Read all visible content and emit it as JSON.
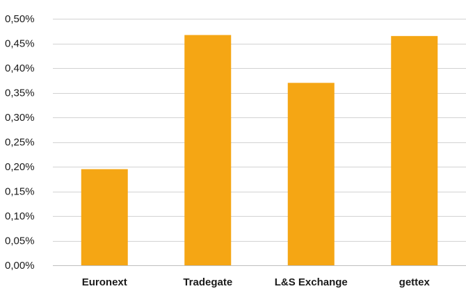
{
  "chart_data": {
    "type": "bar",
    "title": "",
    "xlabel": "",
    "ylabel": "",
    "categories": [
      "Euronext",
      "Tradegate",
      "L&S Exchange",
      "gettex"
    ],
    "values": [
      0.195,
      0.467,
      0.37,
      0.465
    ],
    "ylim": [
      0,
      0.5
    ],
    "yticks": [
      0,
      0.05,
      0.1,
      0.15,
      0.2,
      0.25,
      0.3,
      0.35,
      0.4,
      0.45,
      0.5
    ],
    "ytick_labels": [
      "0,00%",
      "0,05%",
      "0,10%",
      "0,15%",
      "0,20%",
      "0,25%",
      "0,30%",
      "0,35%",
      "0,40%",
      "0,45%",
      "0,50%"
    ],
    "grid": true,
    "legend": "none",
    "bar_color": "#F5A614"
  }
}
